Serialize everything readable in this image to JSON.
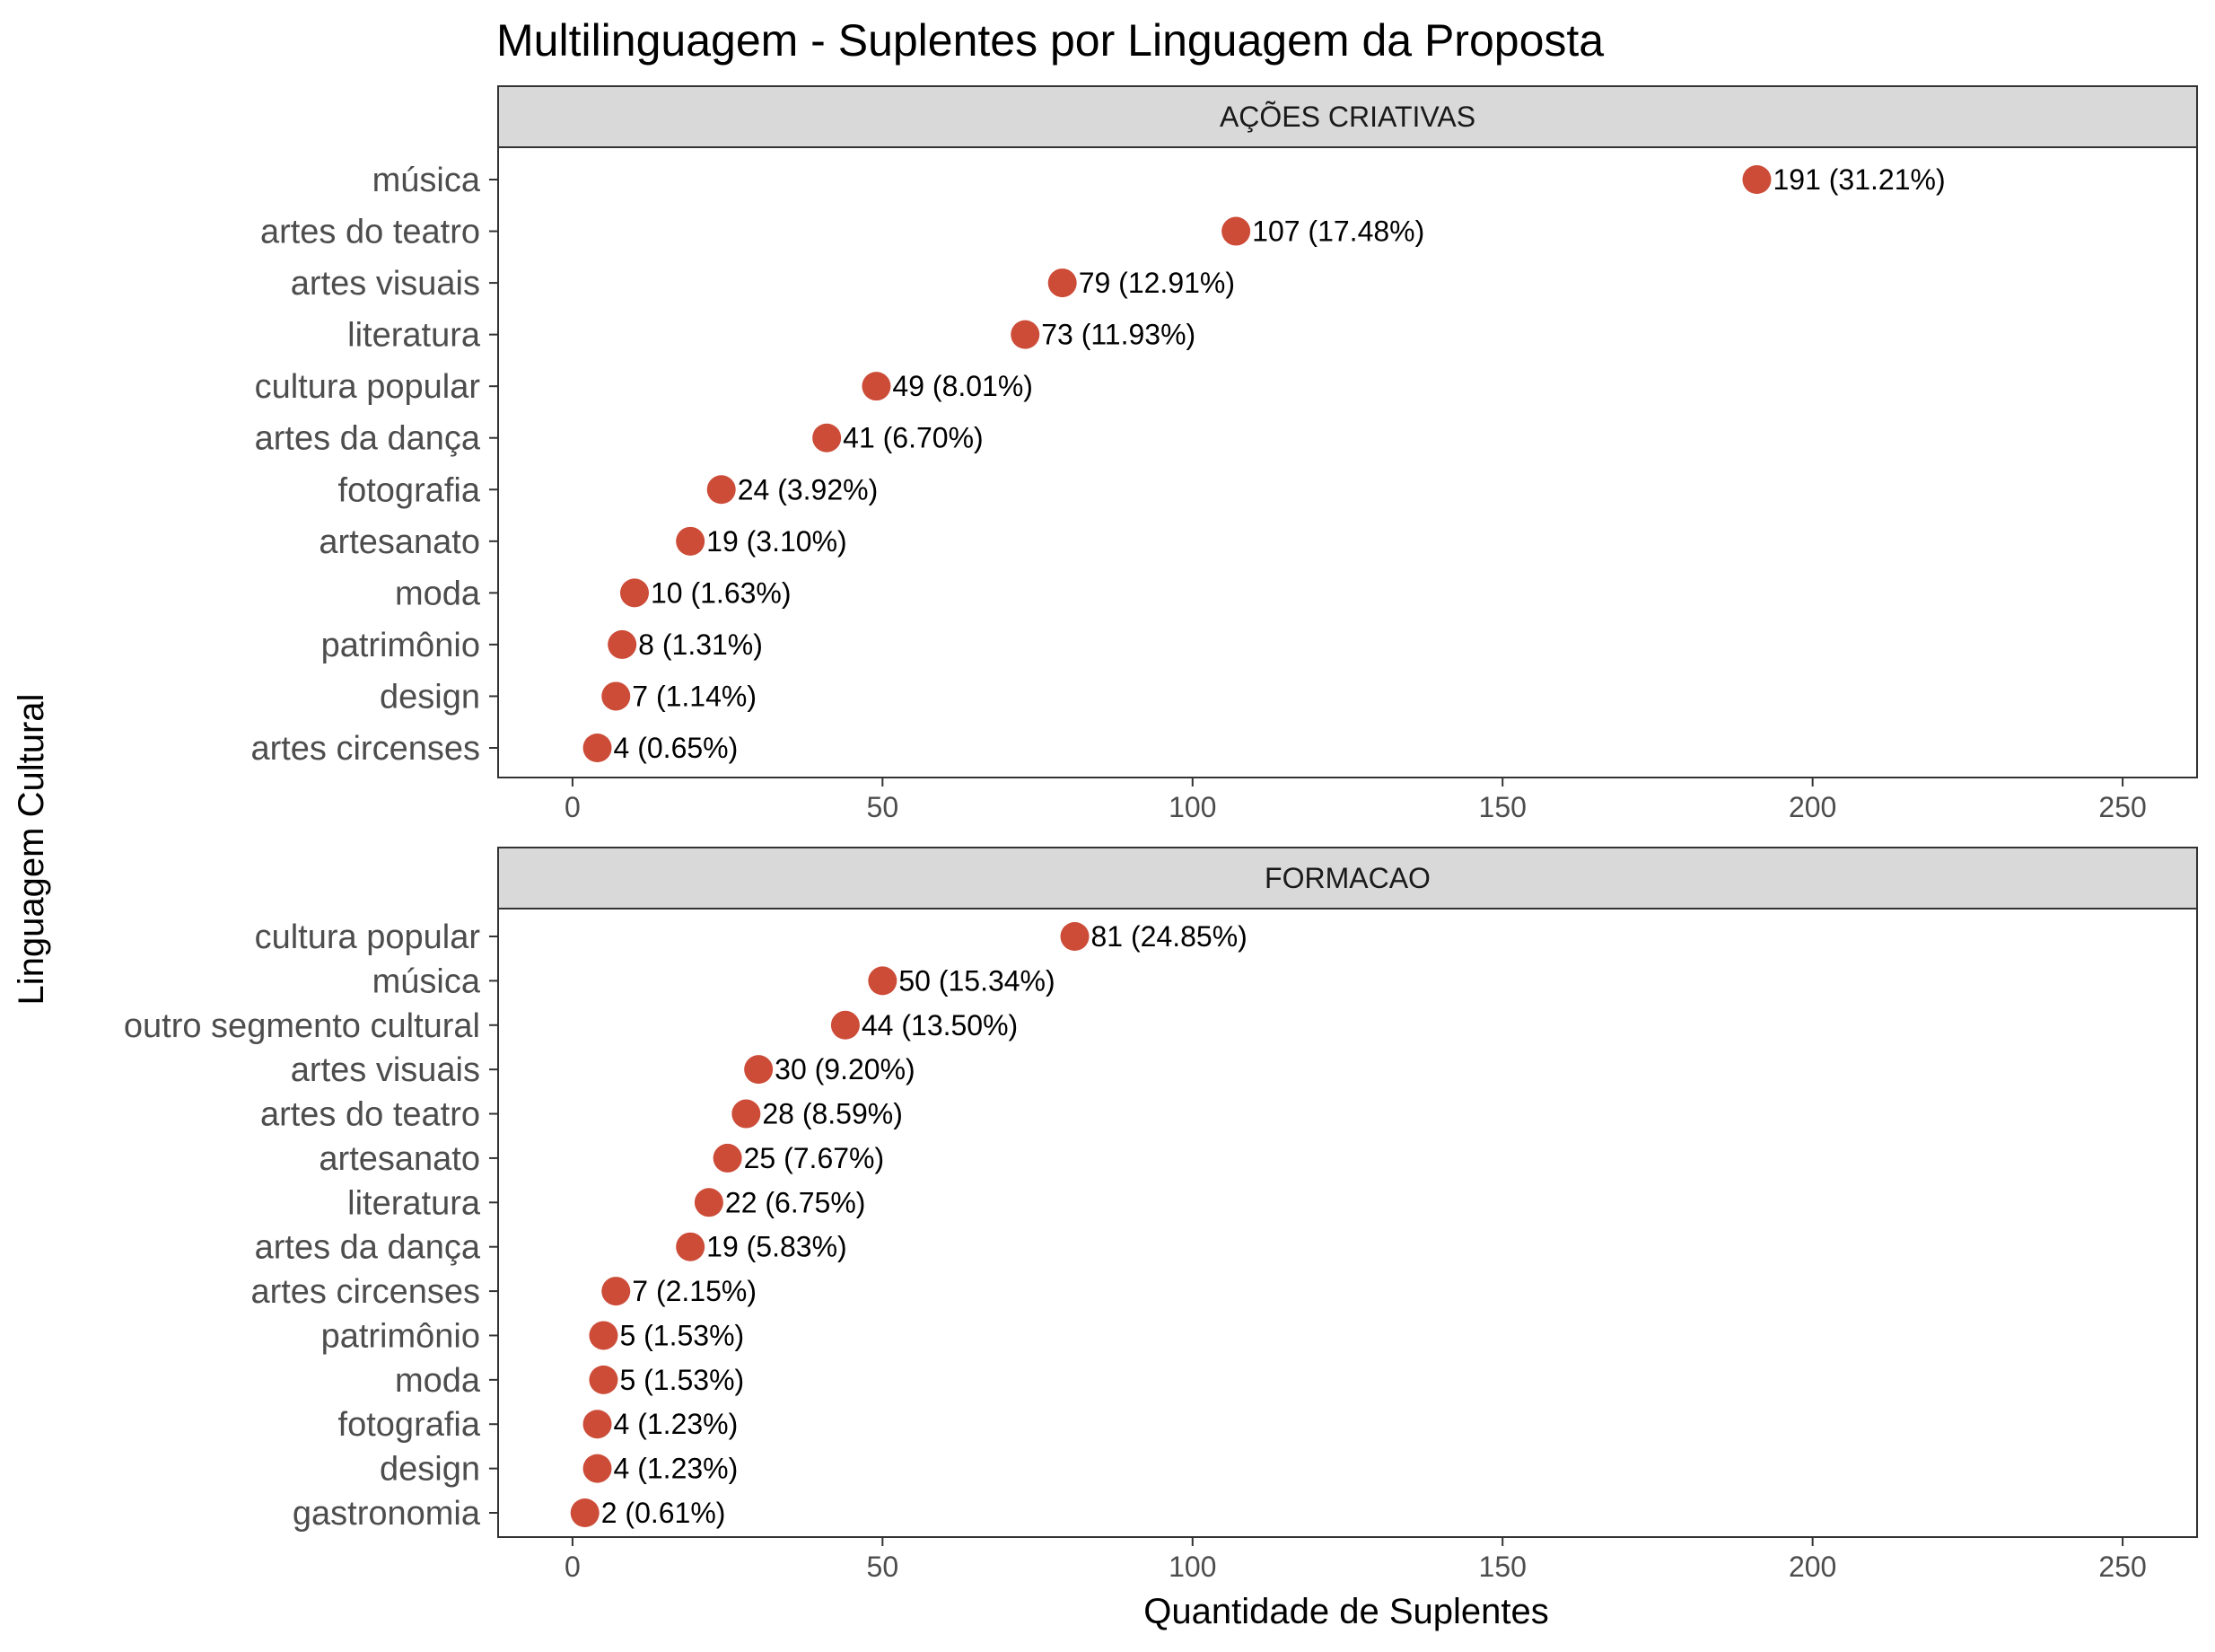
{
  "title": "Multilinguagem - Suplentes por Linguagem da Proposta",
  "xlabel": "Quantidade de Suplentes",
  "ylabel": "Linguagem Cultural",
  "point_color": "#CC4C38",
  "chart_data": [
    {
      "type": "scatter",
      "facet": "AÇÕES CRIATIVAS",
      "xlim": [
        -12,
        262
      ],
      "xticks": [
        0,
        50,
        100,
        150,
        200,
        250
      ],
      "grid": false,
      "categories": [
        "música",
        "artes do teatro",
        "artes visuais",
        "literatura",
        "cultura popular",
        "artes da dança",
        "fotografia",
        "artesanato",
        "moda",
        "patrimônio",
        "design",
        "artes circenses"
      ],
      "values": [
        191,
        107,
        79,
        73,
        49,
        41,
        24,
        19,
        10,
        8,
        7,
        4
      ],
      "labels": [
        "191 (31.21%)",
        "107 (17.48%)",
        "79 (12.91%)",
        "73 (11.93%)",
        "49 (8.01%)",
        "41 (6.70%)",
        "24 (3.92%)",
        "19 (3.10%)",
        "10 (1.63%)",
        "8 (1.31%)",
        "7 (1.14%)",
        "4 (0.65%)"
      ]
    },
    {
      "type": "scatter",
      "facet": "FORMACAO",
      "xlim": [
        -12,
        262
      ],
      "xticks": [
        0,
        50,
        100,
        150,
        200,
        250
      ],
      "grid": false,
      "categories": [
        "cultura popular",
        "música",
        "outro segmento cultural",
        "artes visuais",
        "artes do teatro",
        "artesanato",
        "literatura",
        "artes da dança",
        "artes circenses",
        "patrimônio",
        "moda",
        "fotografia",
        "design",
        "gastronomia"
      ],
      "values": [
        81,
        50,
        44,
        30,
        28,
        25,
        22,
        19,
        7,
        5,
        5,
        4,
        4,
        2
      ],
      "labels": [
        "81 (24.85%)",
        "50 (15.34%)",
        "44 (13.50%)",
        "30 (9.20%)",
        "28 (8.59%)",
        "25 (7.67%)",
        "22 (6.75%)",
        "19 (5.83%)",
        "7 (2.15%)",
        "5 (1.53%)",
        "5 (1.53%)",
        "4 (1.23%)",
        "4 (1.23%)",
        "2 (0.61%)"
      ]
    }
  ]
}
